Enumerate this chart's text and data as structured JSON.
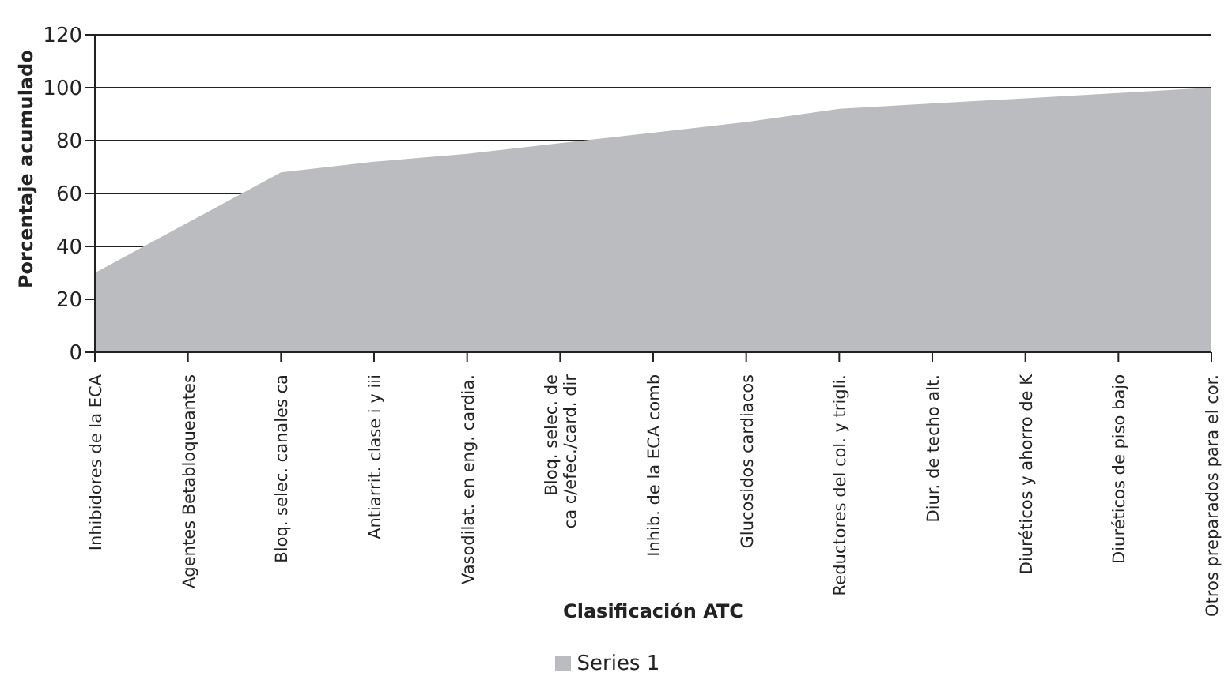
{
  "chart_data": {
    "type": "area",
    "xlabel": "Clasificación ATC",
    "ylabel": "Porcentaje acumulado",
    "categories": [
      "Inhibidores de la ECA",
      "Agentes Betabloqueantes",
      "Bloq. selec. canales ca",
      "Antiarrit. clase i y iii",
      "Vasodilat. en eng. cardia.",
      "Bloq. selec. de ca c/efec./card. dir",
      "Inhib. de la ECA comb",
      "Glucosidos cardiacos",
      "Reductores del col. y trigli.",
      "Diur. de techo alt.",
      "Diuréticos  y ahorro de K",
      "Diuréticos de piso bajo",
      "Otros preparados para el cor."
    ],
    "series": [
      {
        "name": "Series 1",
        "color": "#bbbcbf",
        "values": [
          30,
          49,
          68,
          72,
          75,
          79,
          83,
          87,
          92,
          94,
          96,
          98,
          100
        ]
      }
    ],
    "ylim": [
      0,
      120
    ],
    "yticks": [
      0,
      20,
      40,
      60,
      80,
      100,
      120
    ],
    "grid": "y",
    "legend": "bottom"
  }
}
